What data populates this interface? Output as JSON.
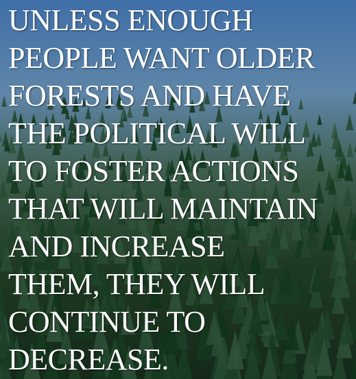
{
  "quote": {
    "lines": [
      "UNLESS ENOUGH",
      "PEOPLE WANT OLDER",
      "FORESTS AND HAVE",
      "THE POLITICAL WILL",
      "TO FOSTER ACTIONS",
      "THAT WILL MAINTAIN",
      "AND INCREASE",
      "THEM, THEY WILL",
      "CONTINUE TO",
      "DECREASE."
    ]
  }
}
